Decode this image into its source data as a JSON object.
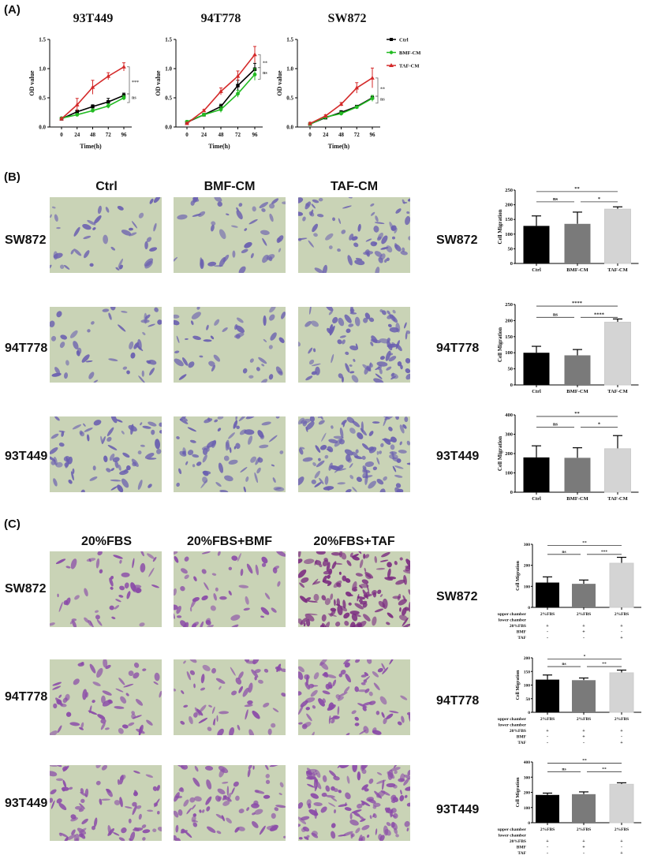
{
  "panels": {
    "a": "(A)",
    "b": "(B)",
    "c": "(C)"
  },
  "panel_b": {
    "columns": [
      "Ctrl",
      "BMF-CM",
      "TAF-CM"
    ],
    "rows": [
      "SW872",
      "94T778",
      "93T449"
    ]
  },
  "panel_c": {
    "columns": [
      "20%FBS",
      "20%FBS+BMF",
      "20%FBS+TAF"
    ],
    "rows": [
      "SW872",
      "94T778",
      "93T449"
    ]
  },
  "colors": {
    "ctrl": "#000000",
    "bmf": "#22bb22",
    "taf": "#d42a2a",
    "bar_ctrl": "#000000",
    "bar_bmf": "#7a7a7a",
    "bar_taf": "#d4d4d4"
  },
  "chart_data": [
    {
      "type": "line",
      "title": "93T449",
      "xlabel": "Time(h)",
      "ylabel": "OD value",
      "x": [
        0,
        24,
        48,
        72,
        96
      ],
      "xticks": [
        "0",
        "24",
        "48",
        "72",
        "96"
      ],
      "ylim": [
        0,
        1.5
      ],
      "yticks": [
        "0.0",
        "0.5",
        "1.0",
        "1.5"
      ],
      "series": [
        {
          "name": "Ctrl",
          "marker": "square",
          "values": [
            0.14,
            0.26,
            0.35,
            0.43,
            0.54
          ],
          "errors": [
            0.02,
            0.03,
            0.03,
            0.06,
            0.04
          ]
        },
        {
          "name": "BMF-CM",
          "marker": "circle",
          "values": [
            0.15,
            0.21,
            0.28,
            0.36,
            0.5
          ],
          "errors": [
            0.02,
            0.02,
            0.03,
            0.04,
            0.04
          ]
        },
        {
          "name": "TAF-CM",
          "marker": "triangle",
          "values": [
            0.14,
            0.38,
            0.68,
            0.87,
            1.03
          ],
          "errors": [
            0.02,
            0.11,
            0.12,
            0.06,
            0.07
          ]
        }
      ],
      "significance": [
        {
          "between": [
            "TAF-CM",
            "Ctrl"
          ],
          "label": "***"
        },
        {
          "between": [
            "Ctrl",
            "BMF-CM"
          ],
          "label": "ns"
        }
      ]
    },
    {
      "type": "line",
      "title": "94T778",
      "xlabel": "Time(h)",
      "ylabel": "OD value",
      "x": [
        0,
        24,
        48,
        72,
        96
      ],
      "xticks": [
        "0",
        "24",
        "48",
        "72",
        "96"
      ],
      "ylim": [
        0,
        1.5
      ],
      "yticks": [
        "0.0",
        "0.5",
        "1.0",
        "1.5"
      ],
      "series": [
        {
          "name": "Ctrl",
          "marker": "square",
          "values": [
            0.08,
            0.21,
            0.35,
            0.71,
            0.99
          ],
          "errors": [
            0.02,
            0.02,
            0.04,
            0.09,
            0.1
          ]
        },
        {
          "name": "BMF-CM",
          "marker": "circle",
          "values": [
            0.09,
            0.21,
            0.3,
            0.57,
            0.9
          ],
          "errors": [
            0.02,
            0.02,
            0.05,
            0.06,
            0.1
          ]
        },
        {
          "name": "TAF-CM",
          "marker": "triangle",
          "values": [
            0.06,
            0.28,
            0.61,
            0.87,
            1.24
          ],
          "errors": [
            0.02,
            0.02,
            0.06,
            0.09,
            0.14
          ]
        }
      ],
      "significance": [
        {
          "between": [
            "TAF-CM",
            "Ctrl"
          ],
          "label": "**"
        },
        {
          "between": [
            "Ctrl",
            "BMF-CM"
          ],
          "label": "ns"
        }
      ]
    },
    {
      "type": "line",
      "title": "SW872",
      "xlabel": "Time(h)",
      "ylabel": "OD value",
      "x": [
        0,
        24,
        48,
        72,
        96
      ],
      "xticks": [
        "0",
        "24",
        "48",
        "72",
        "96"
      ],
      "ylim": [
        0,
        1.5
      ],
      "yticks": [
        "0.0",
        "0.5",
        "1.0",
        "1.5"
      ],
      "legend": "right",
      "series": [
        {
          "name": "Ctrl",
          "marker": "square",
          "values": [
            0.05,
            0.16,
            0.25,
            0.35,
            0.5
          ],
          "errors": [
            0.02,
            0.02,
            0.03,
            0.02,
            0.04
          ]
        },
        {
          "name": "BMF-CM",
          "marker": "circle",
          "values": [
            0.05,
            0.17,
            0.23,
            0.34,
            0.49
          ],
          "errors": [
            0.02,
            0.02,
            0.03,
            0.02,
            0.05
          ]
        },
        {
          "name": "TAF-CM",
          "marker": "triangle",
          "values": [
            0.06,
            0.19,
            0.39,
            0.67,
            0.84
          ],
          "errors": [
            0.02,
            0.02,
            0.03,
            0.09,
            0.17
          ]
        }
      ],
      "significance": [
        {
          "between": [
            "TAF-CM",
            "Ctrl"
          ],
          "label": "**"
        },
        {
          "between": [
            "Ctrl",
            "BMF-CM"
          ],
          "label": "ns"
        }
      ]
    },
    {
      "type": "bar",
      "cell_line": "SW872",
      "ylabel": "Cell Migration",
      "categories": [
        "Ctrl",
        "BMF-CM",
        "TAF-CM"
      ],
      "values": [
        128,
        135,
        185
      ],
      "errors": [
        34,
        40,
        8
      ],
      "ylim": [
        0,
        250
      ],
      "yticks": [
        "0",
        "50",
        "100",
        "150",
        "200",
        "250"
      ],
      "significance": [
        {
          "pair": [
            0,
            1
          ],
          "label": "ns"
        },
        {
          "pair": [
            1,
            2
          ],
          "label": "*"
        },
        {
          "pair": [
            0,
            2
          ],
          "label": "**"
        }
      ]
    },
    {
      "type": "bar",
      "cell_line": "94T778",
      "ylabel": "Cell Migration",
      "categories": [
        "Ctrl",
        "BMF-CM",
        "TAF-CM"
      ],
      "values": [
        100,
        92,
        195
      ],
      "errors": [
        20,
        18,
        10
      ],
      "ylim": [
        0,
        250
      ],
      "yticks": [
        "0",
        "50",
        "100",
        "150",
        "200",
        "250"
      ],
      "significance": [
        {
          "pair": [
            0,
            1
          ],
          "label": "ns"
        },
        {
          "pair": [
            1,
            2
          ],
          "label": "****"
        },
        {
          "pair": [
            0,
            2
          ],
          "label": "****"
        }
      ]
    },
    {
      "type": "bar",
      "cell_line": "93T449",
      "ylabel": "Cell Migration",
      "categories": [
        "Ctrl",
        "BMF-CM",
        "TAF-CM"
      ],
      "values": [
        180,
        178,
        225
      ],
      "errors": [
        60,
        52,
        68
      ],
      "ylim": [
        0,
        400
      ],
      "yticks": [
        "0",
        "100",
        "200",
        "300",
        "400"
      ],
      "significance": [
        {
          "pair": [
            0,
            1
          ],
          "label": "ns"
        },
        {
          "pair": [
            1,
            2
          ],
          "label": "*"
        },
        {
          "pair": [
            0,
            2
          ],
          "label": "**"
        }
      ]
    },
    {
      "type": "bar",
      "cell_line": "SW872",
      "ylabel": "Cell Migration",
      "categories": [
        "2%FBS",
        "2%FBS",
        "2%FBS"
      ],
      "values": [
        118,
        112,
        210
      ],
      "errors": [
        27,
        18,
        28
      ],
      "ylim": [
        0,
        300
      ],
      "yticks": [
        "0",
        "100",
        "200",
        "300"
      ],
      "conditions": [
        [
          "upper chamber",
          "2%FBS",
          "2%FBS",
          "2%FBS"
        ],
        [
          "lower chamber",
          "",
          "",
          ""
        ],
        [
          "20%FBS",
          "+",
          "+",
          "+"
        ],
        [
          "BMF",
          "-",
          "+",
          "-"
        ],
        [
          "TAF",
          "-",
          "-",
          "+"
        ]
      ],
      "significance": [
        {
          "pair": [
            0,
            1
          ],
          "label": "ns"
        },
        {
          "pair": [
            1,
            2
          ],
          "label": "***"
        },
        {
          "pair": [
            0,
            2
          ],
          "label": "**"
        }
      ]
    },
    {
      "type": "bar",
      "cell_line": "94T778",
      "ylabel": "Cell Migration",
      "categories": [
        "2%FBS",
        "2%FBS",
        "2%FBS"
      ],
      "values": [
        120,
        118,
        145
      ],
      "errors": [
        17,
        8,
        10
      ],
      "ylim": [
        0,
        200
      ],
      "yticks": [
        "0",
        "50",
        "100",
        "150",
        "200"
      ],
      "conditions": [
        [
          "upper chamber",
          "2%FBS",
          "2%FBS",
          "2%FBS"
        ],
        [
          "lower chamber",
          "",
          "",
          ""
        ],
        [
          "20%FBS",
          "+",
          "+",
          "+"
        ],
        [
          "BMF",
          "-",
          "+",
          "-"
        ],
        [
          "TAF",
          "-",
          "-",
          "+"
        ]
      ],
      "significance": [
        {
          "pair": [
            0,
            1
          ],
          "label": "ns"
        },
        {
          "pair": [
            1,
            2
          ],
          "label": "**"
        },
        {
          "pair": [
            0,
            2
          ],
          "label": "*"
        }
      ]
    },
    {
      "type": "bar",
      "cell_line": "93T449",
      "ylabel": "Cell Migration",
      "categories": [
        "2%FBS",
        "2%FBS",
        "2%FBS"
      ],
      "values": [
        183,
        188,
        253
      ],
      "errors": [
        12,
        15,
        10
      ],
      "ylim": [
        0,
        400
      ],
      "yticks": [
        "0",
        "100",
        "200",
        "300",
        "400"
      ],
      "conditions": [
        [
          "upper chamber",
          "2%FBS",
          "2%FBS",
          "2%FBS"
        ],
        [
          "lower chamber",
          "",
          "",
          ""
        ],
        [
          "20%FBS",
          "+",
          "+",
          "+"
        ],
        [
          "BMF",
          "-",
          "+",
          "-"
        ],
        [
          "TAF",
          "-",
          "-",
          "+"
        ]
      ],
      "significance": [
        {
          "pair": [
            0,
            1
          ],
          "label": "ns"
        },
        {
          "pair": [
            1,
            2
          ],
          "label": "**"
        },
        {
          "pair": [
            0,
            2
          ],
          "label": "**"
        }
      ]
    }
  ]
}
